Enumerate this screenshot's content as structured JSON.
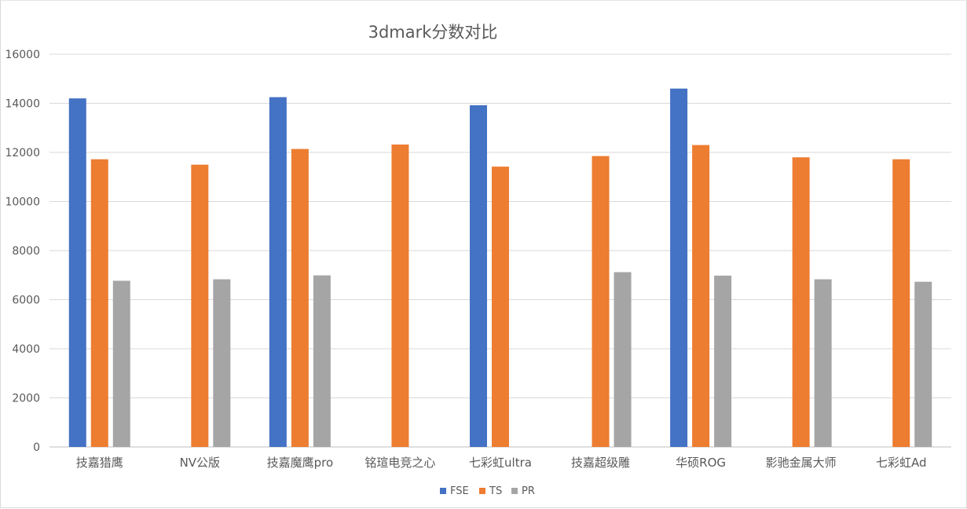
{
  "chart_data": {
    "type": "bar",
    "title": "3dmark分数对比",
    "xlabel": "",
    "ylabel": "",
    "ylim": [
      0,
      16000
    ],
    "yticks": [
      0,
      2000,
      4000,
      6000,
      8000,
      10000,
      12000,
      14000,
      16000
    ],
    "grid": true,
    "legend_position": "bottom",
    "categories": [
      "技嘉猎鹰",
      "NV公版",
      "技嘉魔鹰pro",
      "铭瑄电竞之心",
      "七彩虹ultra",
      "技嘉超级雕",
      "华硕ROG",
      "影驰金属大师",
      "七彩虹Ad"
    ],
    "series": [
      {
        "name": "FSE",
        "color": "#4472c4",
        "values": [
          14200,
          null,
          14250,
          null,
          13920,
          null,
          14600,
          null,
          null
        ]
      },
      {
        "name": "TS",
        "color": "#ed7d31",
        "values": [
          11720,
          11500,
          12140,
          12320,
          11420,
          11850,
          12300,
          11800,
          11720
        ]
      },
      {
        "name": "PR",
        "color": "#a5a5a5",
        "values": [
          6770,
          6830,
          6990,
          null,
          null,
          7120,
          6980,
          6830,
          6730
        ]
      }
    ]
  }
}
